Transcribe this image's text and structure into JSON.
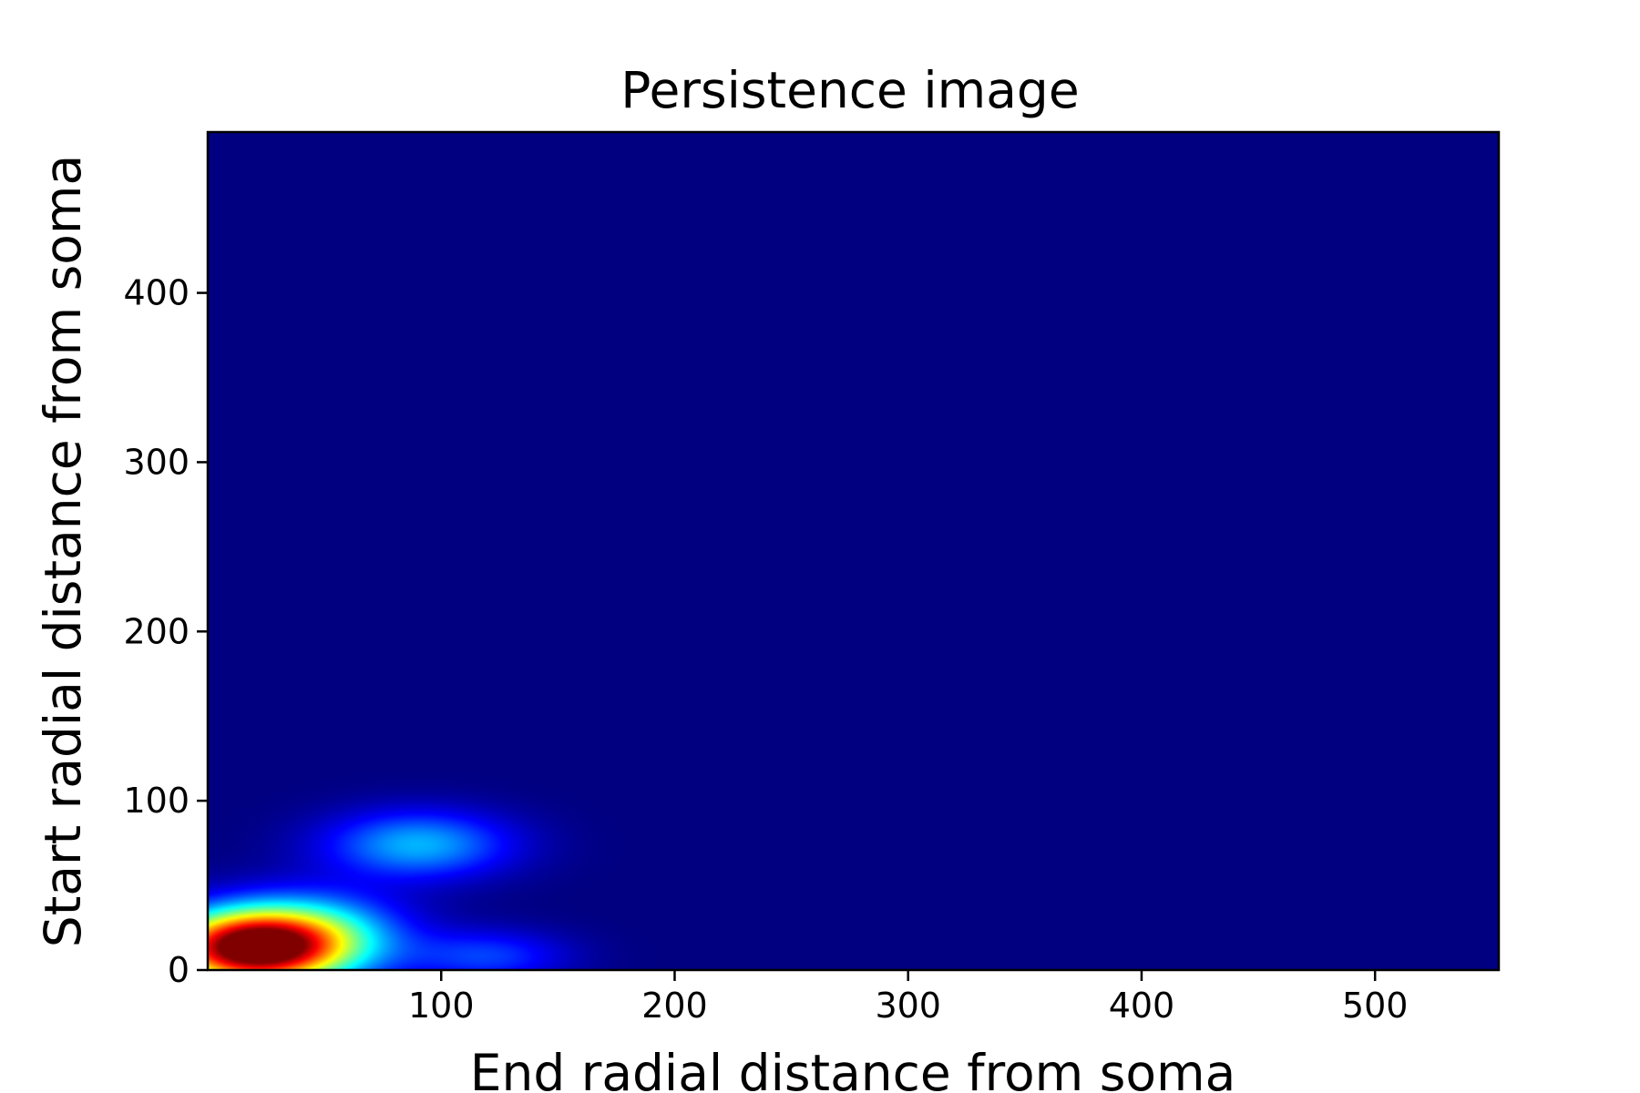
{
  "chart_data": {
    "type": "heatmap",
    "title": "Persistence image",
    "xlabel": "End radial distance from soma",
    "ylabel": "Start radial distance from soma",
    "xlim": [
      0,
      553
    ],
    "ylim": [
      0,
      495
    ],
    "x_ticks": [
      "100",
      "200",
      "300",
      "400",
      "500"
    ],
    "x_tick_values": [
      100,
      200,
      300,
      400,
      500
    ],
    "y_ticks": [
      "0",
      "100",
      "200",
      "300",
      "400"
    ],
    "y_tick_values": [
      0,
      100,
      200,
      300,
      400
    ],
    "colormap": "jet",
    "background_color": "#00007f",
    "grid": false,
    "intensity_peaks": [
      {
        "x": 18,
        "y": 13,
        "sx": 26,
        "sy": 15,
        "value": 1.0
      },
      {
        "x": 45,
        "y": 20,
        "sx": 28,
        "sy": 18,
        "value": 0.35
      },
      {
        "x": 90,
        "y": 74,
        "sx": 28,
        "sy": 14,
        "value": 0.3
      },
      {
        "x": 120,
        "y": 8,
        "sx": 24,
        "sy": 11,
        "value": 0.18
      }
    ]
  }
}
